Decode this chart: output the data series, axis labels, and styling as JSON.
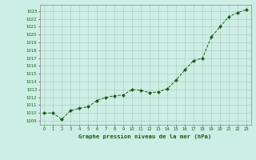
{
  "x": [
    0,
    1,
    2,
    3,
    4,
    5,
    6,
    7,
    8,
    9,
    10,
    11,
    12,
    13,
    14,
    15,
    16,
    17,
    18,
    19,
    20,
    21,
    22,
    23
  ],
  "y": [
    1010.0,
    1010.0,
    1009.2,
    1010.3,
    1010.6,
    1010.8,
    1011.6,
    1012.0,
    1012.2,
    1012.3,
    1013.0,
    1012.9,
    1012.6,
    1012.7,
    1013.1,
    1014.2,
    1015.5,
    1016.7,
    1017.0,
    1019.7,
    1021.0,
    1022.3,
    1022.8,
    1023.2
  ],
  "xlabel": "Graphe pression niveau de la mer (hPa)",
  "ylabel_ticks": [
    1009,
    1010,
    1011,
    1012,
    1013,
    1014,
    1015,
    1016,
    1017,
    1018,
    1019,
    1020,
    1021,
    1022,
    1023
  ],
  "ylim": [
    1008.5,
    1023.8
  ],
  "xlim": [
    -0.5,
    23.5
  ],
  "bg_color": "#cceee4",
  "grid_color": "#b0c8c0",
  "line_color": "#1a5c1a",
  "marker_color": "#1a5c1a",
  "xlabel_color": "#1a5c1a",
  "tick_color": "#1a5c1a",
  "spine_color": "#888888"
}
